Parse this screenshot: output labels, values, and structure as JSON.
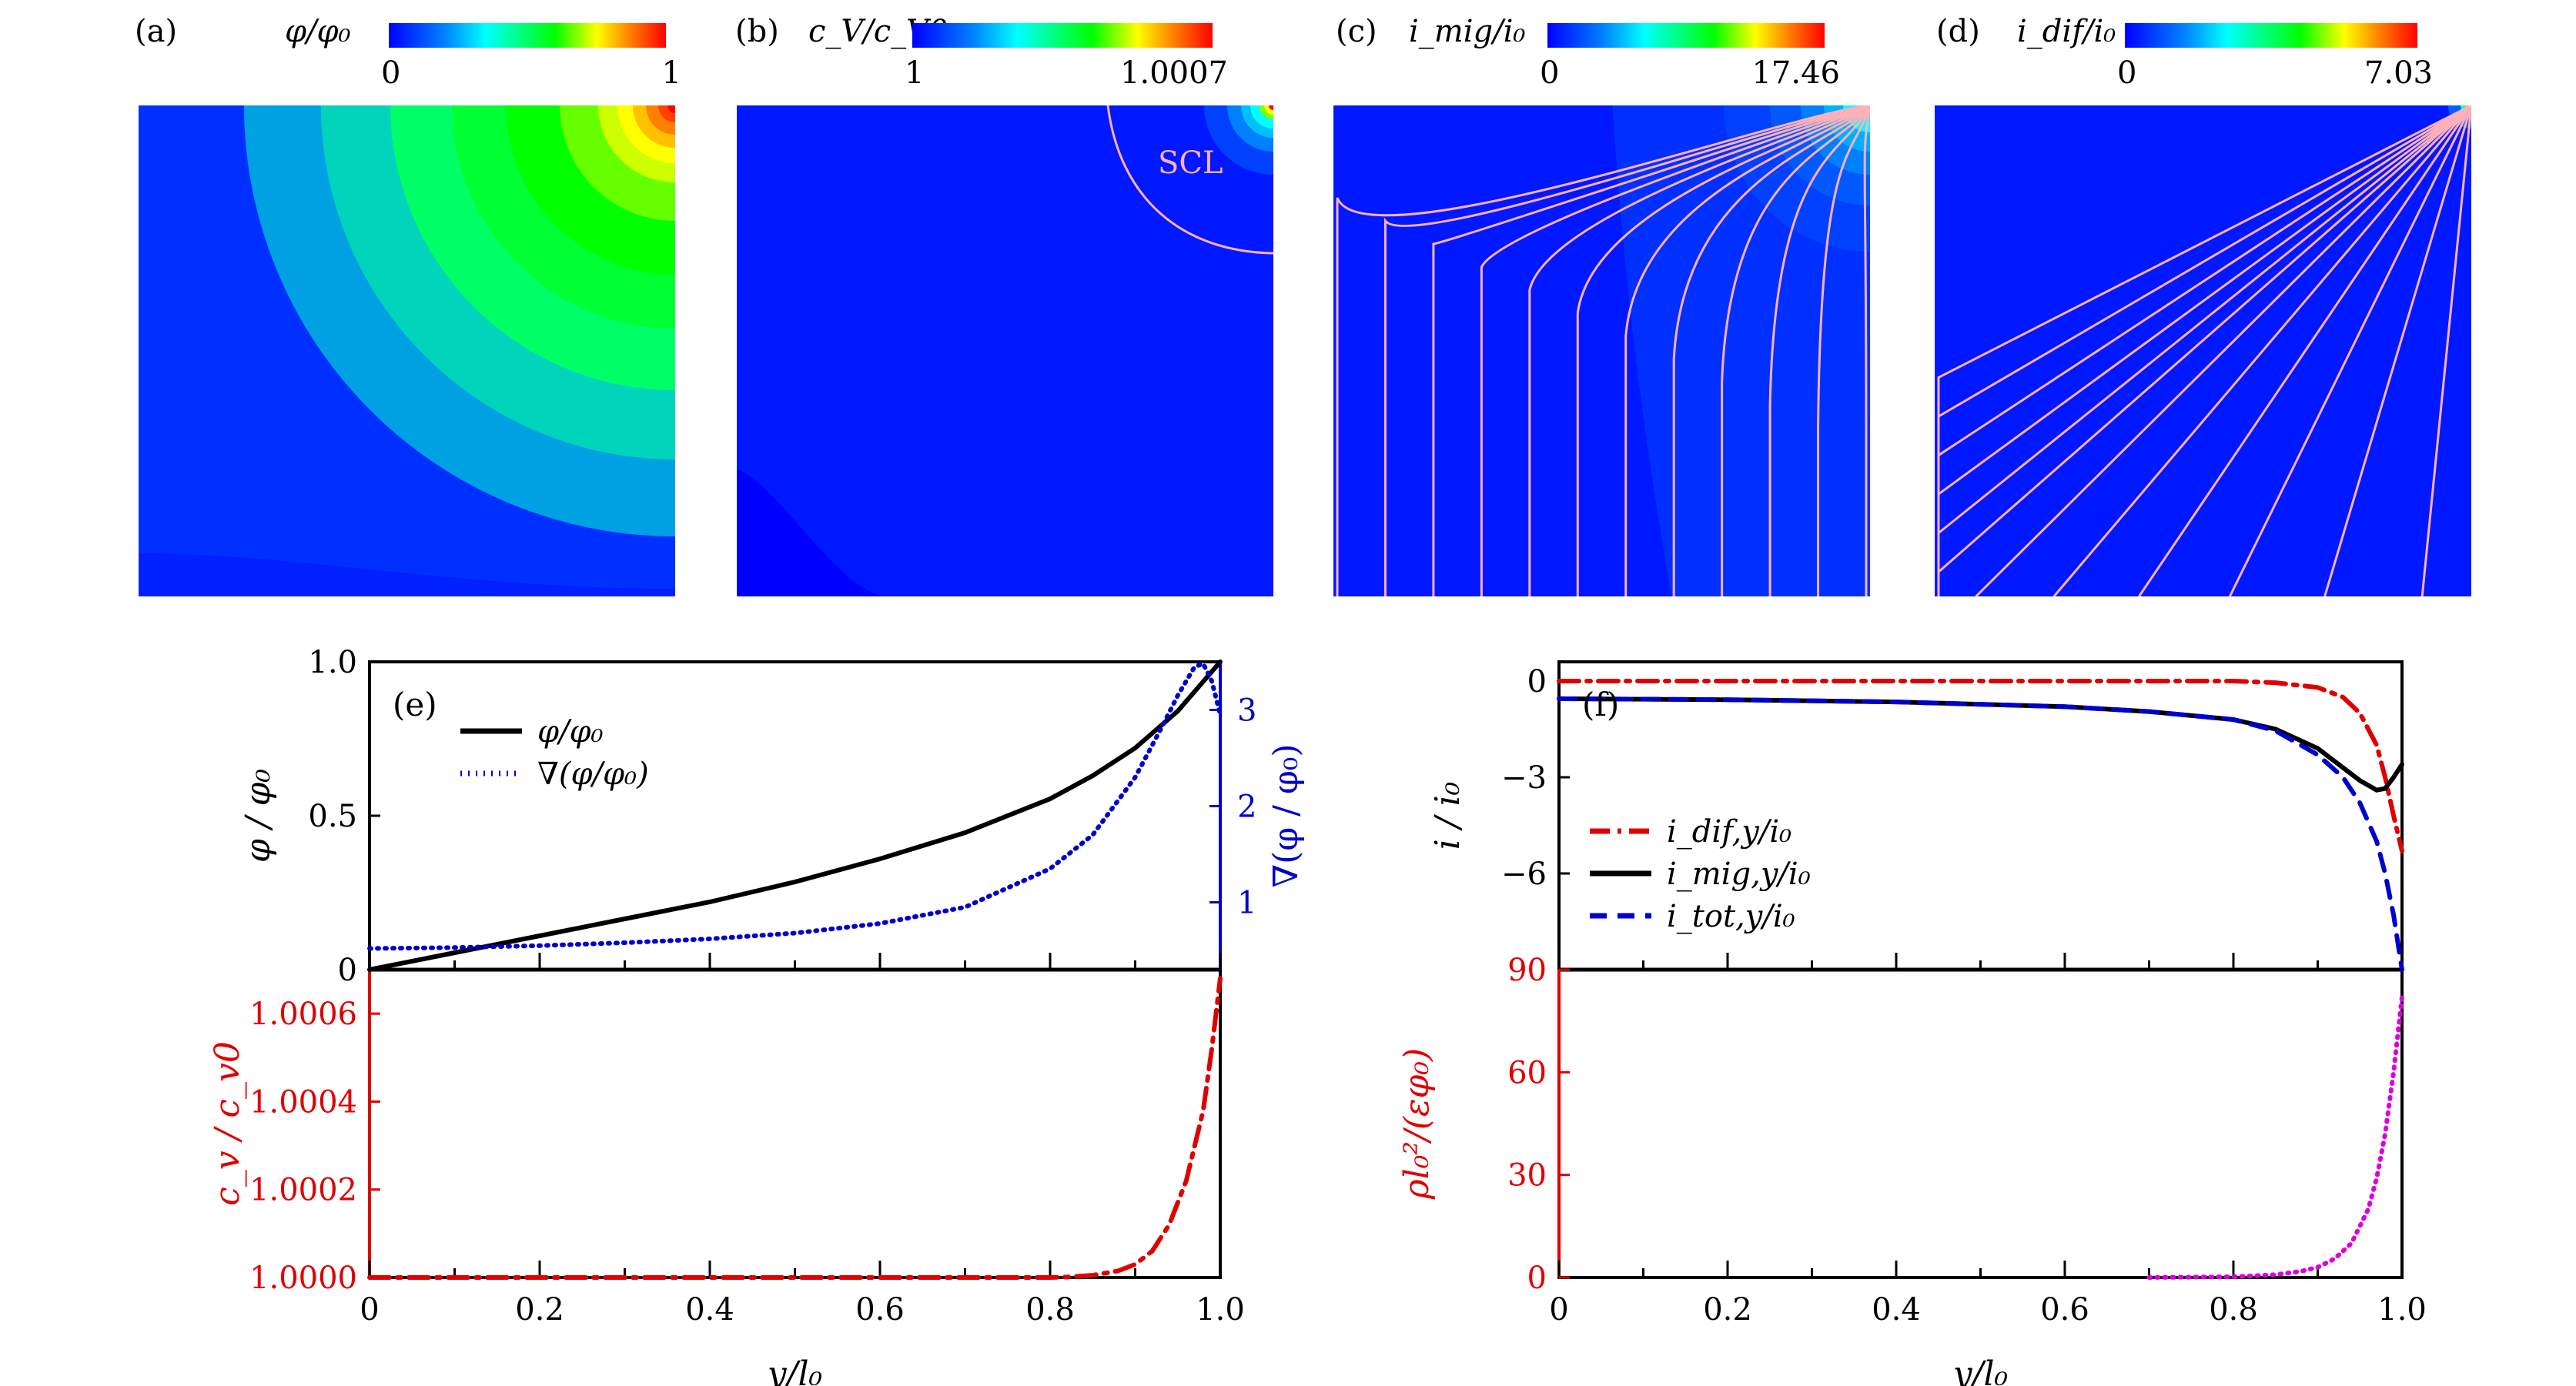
{
  "figure": {
    "panels_top": [
      {
        "id": "a",
        "label": "(a)",
        "cb_title": "φ/φ₀",
        "cb_min": "0",
        "cb_max": "1"
      },
      {
        "id": "b",
        "label": "(b)",
        "cb_title": "c_V/c_V0",
        "cb_min": "1",
        "cb_max": "1.0007",
        "annotation": "SCL"
      },
      {
        "id": "c",
        "label": "(c)",
        "cb_title": "i_mig/i₀",
        "cb_min": "0",
        "cb_max": "17.46"
      },
      {
        "id": "d",
        "label": "(d)",
        "cb_title": "i_dif/i₀",
        "cb_min": "0",
        "cb_max": "7.03"
      }
    ],
    "colors": {
      "jet_blue": "#0000ff",
      "jet_cyan": "#00ffff",
      "jet_green": "#00ff00",
      "jet_yellow": "#ffff00",
      "jet_red": "#ff0000",
      "map_bg": "#0018ff",
      "streamline": "#ffb0b8",
      "red_axis": "#e00000",
      "blue_axis": "#0000cc",
      "magenta": "#dd00dd"
    }
  },
  "chart_data": [
    {
      "type": "heatmap",
      "panel": "(a)",
      "title": "φ/φ₀",
      "colorbar_range": [
        0,
        1
      ],
      "colormap": "jet",
      "description": "potential contour; maximum at top-right corner"
    },
    {
      "type": "heatmap",
      "panel": "(b)",
      "title": "c_V/c_V0",
      "colorbar_range": [
        1,
        1.0007
      ],
      "colormap": "jet",
      "annotations": [
        "SCL"
      ],
      "description": "vacancy concentration; nearly uniform except at top-right corner inside SCL arc"
    },
    {
      "type": "heatmap",
      "panel": "(c)",
      "title": "i_mig/i₀",
      "colorbar_range": [
        0,
        17.46
      ],
      "colormap": "jet",
      "description": "migration current magnitude with streamlines from top-right corner"
    },
    {
      "type": "heatmap",
      "panel": "(d)",
      "title": "i_dif/i₀",
      "colorbar_range": [
        0,
        7.03
      ],
      "colormap": "jet",
      "description": "diffusion current magnitude with streamlines from top-right corner"
    },
    {
      "type": "line",
      "panel": "(e) top",
      "xlabel": "y/l₀",
      "ylabel": "φ/φ₀",
      "ylabel_right": "∇(φ/φ₀)",
      "xlim": [
        0,
        1
      ],
      "ylim": [
        0,
        1
      ],
      "ylim_right": [
        0.3,
        3.5
      ],
      "yticks": [
        "0",
        "0.5",
        "1.0"
      ],
      "yticks_right": [
        "1",
        "2",
        "3"
      ],
      "legend": "top-left",
      "series": [
        {
          "name": "φ/φ₀",
          "axis": "left",
          "style": "solid",
          "color": "#000000",
          "x": [
            0,
            0.1,
            0.2,
            0.3,
            0.4,
            0.5,
            0.6,
            0.7,
            0.8,
            0.85,
            0.9,
            0.95,
            1.0
          ],
          "y": [
            0,
            0.055,
            0.11,
            0.165,
            0.22,
            0.285,
            0.36,
            0.445,
            0.555,
            0.63,
            0.72,
            0.84,
            1.0
          ]
        },
        {
          "name": "∇(φ/φ₀)",
          "axis": "right",
          "style": "dotted",
          "color": "#0000cc",
          "x": [
            0,
            0.1,
            0.2,
            0.3,
            0.4,
            0.5,
            0.6,
            0.7,
            0.8,
            0.85,
            0.9,
            0.93,
            0.95,
            0.97,
            0.98,
            0.99,
            1.0
          ],
          "y": [
            0.52,
            0.53,
            0.55,
            0.58,
            0.62,
            0.68,
            0.78,
            0.95,
            1.35,
            1.7,
            2.3,
            2.8,
            3.15,
            3.45,
            3.48,
            3.3,
            2.95
          ]
        }
      ]
    },
    {
      "type": "line",
      "panel": "(e) bottom",
      "xlabel": "y/l₀",
      "ylabel": "c_v/c_v0",
      "xlim": [
        0,
        1
      ],
      "ylim": [
        1.0,
        1.0007
      ],
      "xticks": [
        "0",
        "0.2",
        "0.4",
        "0.6",
        "0.8",
        "1.0"
      ],
      "yticks": [
        "1.0000",
        "1.0002",
        "1.0004",
        "1.0006"
      ],
      "series": [
        {
          "name": "c_v/c_v0",
          "style": "dashdot",
          "color": "#e00000",
          "x": [
            0,
            0.8,
            0.82,
            0.85,
            0.88,
            0.9,
            0.92,
            0.94,
            0.96,
            0.98,
            0.99,
            1.0
          ],
          "y": [
            1.0,
            1.0,
            1.000001,
            1.000005,
            1.000015,
            1.00003,
            1.00006,
            1.00012,
            1.00022,
            1.00038,
            1.00052,
            1.00068
          ]
        }
      ]
    },
    {
      "type": "line",
      "panel": "(f) top",
      "xlabel": "y/l₀",
      "ylabel": "i/i₀",
      "xlim": [
        0,
        1
      ],
      "ylim": [
        -9,
        0.6
      ],
      "yticks": [
        "0",
        "−3",
        "−6"
      ],
      "legend": "bottom-left",
      "series": [
        {
          "name": "i_dif,y/i₀",
          "style": "dashdot",
          "color": "#e00000",
          "x": [
            0,
            0.2,
            0.4,
            0.6,
            0.8,
            0.85,
            0.9,
            0.93,
            0.95,
            0.97,
            0.98,
            0.99,
            1.0
          ],
          "y": [
            0,
            0,
            0,
            0,
            0,
            -0.05,
            -0.2,
            -0.5,
            -1.0,
            -2.0,
            -3.0,
            -4.2,
            -5.3
          ]
        },
        {
          "name": "i_mig,y/i₀",
          "style": "solid",
          "color": "#000000",
          "x": [
            0,
            0.2,
            0.4,
            0.6,
            0.7,
            0.8,
            0.85,
            0.9,
            0.93,
            0.95,
            0.97,
            0.98,
            0.99,
            1.0
          ],
          "y": [
            -0.55,
            -0.58,
            -0.65,
            -0.8,
            -0.95,
            -1.2,
            -1.5,
            -2.1,
            -2.7,
            -3.1,
            -3.4,
            -3.35,
            -3.0,
            -2.6
          ]
        },
        {
          "name": "i_tot,y/i₀",
          "style": "dashed",
          "color": "#0000cc",
          "x": [
            0,
            0.2,
            0.4,
            0.6,
            0.7,
            0.8,
            0.85,
            0.9,
            0.93,
            0.95,
            0.97,
            0.98,
            0.99,
            1.0
          ],
          "y": [
            -0.55,
            -0.58,
            -0.65,
            -0.8,
            -0.95,
            -1.2,
            -1.55,
            -2.3,
            -3.0,
            -3.8,
            -5.0,
            -6.0,
            -7.3,
            -9.0
          ]
        }
      ]
    },
    {
      "type": "line",
      "panel": "(f) bottom",
      "xlabel": "y/l₀",
      "ylabel": "ρl₀²/(εφ₀)",
      "xlim": [
        0,
        1
      ],
      "ylim": [
        0,
        90
      ],
      "xticks": [
        "0",
        "0.2",
        "0.4",
        "0.6",
        "0.8",
        "1.0"
      ],
      "yticks": [
        "0",
        "30",
        "60",
        "90"
      ],
      "series": [
        {
          "name": "ρl₀²/(εφ₀)",
          "style": "dotted",
          "color": "#dd00dd",
          "x": [
            0.7,
            0.8,
            0.85,
            0.88,
            0.9,
            0.92,
            0.94,
            0.96,
            0.97,
            0.98,
            0.99,
            1.0
          ],
          "y": [
            0,
            0.2,
            0.8,
            1.8,
            3,
            5.5,
            10,
            20,
            29,
            42,
            60,
            82
          ]
        }
      ]
    }
  ],
  "plots": {
    "e": {
      "label": "(e)",
      "ylabel_top": "φ / φ₀",
      "ylabel_right": "∇(φ / φ₀)",
      "ylabel_bottom": "c_v / c_v0",
      "xlabel": "y/l₀",
      "legend": [
        "φ/φ₀",
        "∇(φ/φ₀)"
      ]
    },
    "f": {
      "label": "(f)",
      "ylabel_top": "i / i₀",
      "ylabel_bottom": "ρl₀²/(εφ₀)",
      "xlabel": "y/l₀",
      "legend": [
        "i_dif,y/i₀",
        "i_mig,y/i₀",
        "i_tot,y/i₀"
      ]
    }
  }
}
